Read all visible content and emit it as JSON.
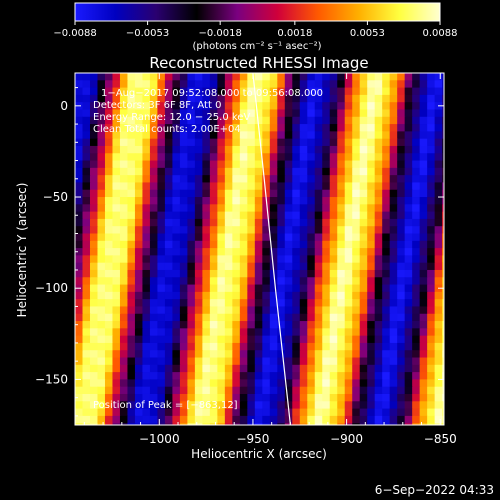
{
  "chart_data": {
    "type": "heatmap",
    "title": "Reconstructed RHESSI Image",
    "xlabel": "Heliocentric X (arcsec)",
    "ylabel": "Heliocentric Y (arcsec)",
    "xlim": [
      -1045,
      -848
    ],
    "ylim": [
      -175,
      18
    ],
    "x_ticks": [
      -1000,
      -950,
      -900,
      -850
    ],
    "y_ticks": [
      0,
      -50,
      -100,
      -150
    ],
    "x_tick_labels": [
      "−1000",
      "−950",
      "−900",
      "−850"
    ],
    "y_tick_labels": [
      "0",
      "−50",
      "−100",
      "−150"
    ],
    "colorbar": {
      "min": -0.0088,
      "max": 0.0088,
      "tick_values": [
        -0.0088,
        -0.0053,
        -0.0018,
        0.0018,
        0.0053,
        0.0088
      ],
      "tick_labels": [
        "−0.0088",
        "−0.0053",
        "−0.0018",
        "0.0018",
        "0.0053",
        "0.0088"
      ],
      "unit_label": "(photons cm⁻² s⁻¹ asec⁻²)",
      "colors": [
        "#1a1aff",
        "#0000c0",
        "#2a0070",
        "#000000",
        "#7a0080",
        "#d0003a",
        "#ff5a00",
        "#ffb000",
        "#ffff40",
        "#ffffd0"
      ]
    },
    "annotations": [
      "1−Aug−2017 09:52:08.000 to 09:56:08.000",
      "Detectors: 3F 6F 8F, Att 0",
      "Energy Range: 12.0 − 25.0 keV",
      "Clean    Total counts: 2.00E+04"
    ],
    "peak_label": "Position of Peak = [−863,12]",
    "limb_curve": [
      [
        -950,
        18
      ],
      [
        -944,
        -40
      ],
      [
        -938,
        -100
      ],
      [
        -930,
        -175
      ]
    ],
    "stripes": {
      "period_arcsec": 63,
      "tilt_arcsec_per_arcsec": 0.16,
      "bright_phase_x_at_y0": -1012
    }
  },
  "footer": {
    "date": "6−Sep−2022 04:33"
  }
}
